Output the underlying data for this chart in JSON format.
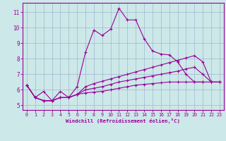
{
  "xlabel": "Windchill (Refroidissement éolien,°C)",
  "bg_color": "#cce8e8",
  "line_color": "#990099",
  "grid_color": "#99aacc",
  "xlim": [
    -0.5,
    23.5
  ],
  "ylim": [
    4.7,
    11.6
  ],
  "xticks": [
    0,
    1,
    2,
    3,
    4,
    5,
    6,
    7,
    8,
    9,
    10,
    11,
    12,
    13,
    14,
    15,
    16,
    17,
    18,
    19,
    20,
    21,
    22,
    23
  ],
  "yticks": [
    5,
    6,
    7,
    8,
    9,
    10,
    11
  ],
  "series": [
    {
      "x": [
        0,
        1,
        2,
        3,
        4,
        5,
        6,
        7,
        8,
        9,
        10,
        11,
        12,
        13,
        14,
        15,
        16,
        17,
        18,
        19,
        20,
        21
      ],
      "y": [
        6.3,
        5.5,
        5.9,
        5.3,
        5.9,
        5.5,
        6.2,
        8.4,
        9.85,
        9.5,
        9.9,
        11.25,
        10.5,
        10.5,
        9.3,
        8.5,
        8.3,
        8.25,
        7.8,
        7.0,
        6.5,
        6.5
      ]
    },
    {
      "x": [
        0,
        1,
        2,
        3,
        4,
        5,
        6,
        7,
        8,
        9,
        10,
        11,
        12,
        13,
        14,
        15,
        16,
        17,
        18,
        19,
        20,
        21,
        22,
        23
      ],
      "y": [
        6.3,
        5.5,
        5.3,
        5.3,
        5.5,
        5.5,
        5.7,
        6.2,
        6.4,
        6.55,
        6.7,
        6.85,
        7.0,
        7.15,
        7.3,
        7.45,
        7.6,
        7.75,
        7.9,
        8.05,
        8.2,
        7.8,
        6.5,
        6.5
      ]
    },
    {
      "x": [
        0,
        1,
        2,
        3,
        4,
        5,
        6,
        7,
        8,
        9,
        10,
        11,
        12,
        13,
        14,
        15,
        16,
        17,
        18,
        19,
        20,
        21,
        22,
        23
      ],
      "y": [
        6.3,
        5.5,
        5.3,
        5.3,
        5.5,
        5.5,
        5.7,
        6.0,
        6.1,
        6.2,
        6.35,
        6.5,
        6.6,
        6.7,
        6.8,
        6.9,
        7.0,
        7.1,
        7.2,
        7.35,
        7.45,
        7.0,
        6.5,
        6.5
      ]
    },
    {
      "x": [
        0,
        1,
        2,
        3,
        4,
        5,
        6,
        7,
        8,
        9,
        10,
        11,
        12,
        13,
        14,
        15,
        16,
        17,
        18,
        19,
        20,
        21,
        22,
        23
      ],
      "y": [
        6.3,
        5.5,
        5.3,
        5.3,
        5.5,
        5.5,
        5.7,
        5.8,
        5.85,
        5.9,
        6.0,
        6.1,
        6.2,
        6.3,
        6.35,
        6.4,
        6.45,
        6.5,
        6.5,
        6.5,
        6.5,
        6.5,
        6.5,
        6.5
      ]
    }
  ],
  "marker": "+",
  "markersize": 3,
  "linewidth": 0.8
}
